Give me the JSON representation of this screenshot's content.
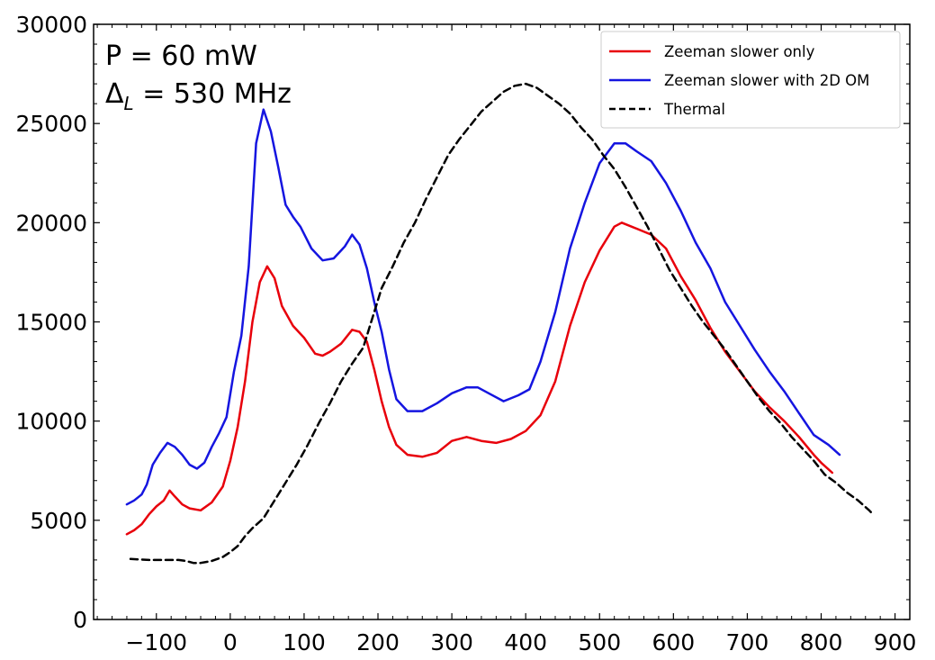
{
  "chart_data": {
    "type": "line",
    "title": "",
    "xlabel": "",
    "ylabel": "",
    "xlim": [
      -185,
      920
    ],
    "ylim": [
      0,
      30000
    ],
    "xticks": [
      -100,
      0,
      100,
      200,
      300,
      400,
      500,
      600,
      700,
      800,
      900
    ],
    "xtick_labels": [
      "−100",
      "0",
      "100",
      "200",
      "300",
      "400",
      "500",
      "600",
      "700",
      "800",
      "900"
    ],
    "yticks": [
      0,
      5000,
      10000,
      15000,
      20000,
      25000,
      30000
    ],
    "ytick_labels": [
      "0",
      "5000",
      "10000",
      "15000",
      "20000",
      "25000",
      "30000"
    ],
    "grid": false,
    "legend_position": "top-right",
    "annotations": [
      {
        "text": "P = 60 mW"
      },
      {
        "text_main": "Δ",
        "text_sub": "L",
        "text_rest": " = 530 MHz"
      }
    ],
    "series": [
      {
        "name": "Zeeman slower only",
        "color": "#e8000b",
        "style": "solid",
        "points": [
          [
            -140,
            4300
          ],
          [
            -130,
            4500
          ],
          [
            -120,
            4800
          ],
          [
            -110,
            5300
          ],
          [
            -100,
            5700
          ],
          [
            -90,
            6000
          ],
          [
            -82,
            6500
          ],
          [
            -75,
            6200
          ],
          [
            -65,
            5800
          ],
          [
            -55,
            5600
          ],
          [
            -40,
            5500
          ],
          [
            -25,
            5900
          ],
          [
            -10,
            6700
          ],
          [
            0,
            8000
          ],
          [
            10,
            9700
          ],
          [
            20,
            12000
          ],
          [
            30,
            15000
          ],
          [
            40,
            17000
          ],
          [
            50,
            17800
          ],
          [
            60,
            17200
          ],
          [
            70,
            15800
          ],
          [
            85,
            14800
          ],
          [
            100,
            14200
          ],
          [
            115,
            13400
          ],
          [
            125,
            13300
          ],
          [
            135,
            13500
          ],
          [
            150,
            13900
          ],
          [
            165,
            14600
          ],
          [
            175,
            14500
          ],
          [
            185,
            14000
          ],
          [
            195,
            12600
          ],
          [
            205,
            11000
          ],
          [
            215,
            9700
          ],
          [
            225,
            8800
          ],
          [
            240,
            8300
          ],
          [
            260,
            8200
          ],
          [
            280,
            8400
          ],
          [
            300,
            9000
          ],
          [
            320,
            9200
          ],
          [
            340,
            9000
          ],
          [
            360,
            8900
          ],
          [
            380,
            9100
          ],
          [
            400,
            9500
          ],
          [
            420,
            10300
          ],
          [
            440,
            12000
          ],
          [
            460,
            14800
          ],
          [
            480,
            17000
          ],
          [
            500,
            18600
          ],
          [
            520,
            19800
          ],
          [
            530,
            20000
          ],
          [
            550,
            19700
          ],
          [
            570,
            19400
          ],
          [
            590,
            18700
          ],
          [
            610,
            17300
          ],
          [
            630,
            16100
          ],
          [
            650,
            14700
          ],
          [
            670,
            13500
          ],
          [
            690,
            12500
          ],
          [
            710,
            11500
          ],
          [
            730,
            10700
          ],
          [
            750,
            10000
          ],
          [
            770,
            9200
          ],
          [
            790,
            8300
          ],
          [
            800,
            7900
          ],
          [
            815,
            7400
          ]
        ]
      },
      {
        "name": "Zeeman slower with 2D OM",
        "color": "#1515e0",
        "style": "solid",
        "points": [
          [
            -140,
            5800
          ],
          [
            -130,
            6000
          ],
          [
            -120,
            6300
          ],
          [
            -113,
            6800
          ],
          [
            -105,
            7800
          ],
          [
            -95,
            8400
          ],
          [
            -85,
            8900
          ],
          [
            -75,
            8700
          ],
          [
            -65,
            8300
          ],
          [
            -55,
            7800
          ],
          [
            -45,
            7600
          ],
          [
            -35,
            7900
          ],
          [
            -25,
            8700
          ],
          [
            -15,
            9400
          ],
          [
            -5,
            10200
          ],
          [
            5,
            12500
          ],
          [
            15,
            14300
          ],
          [
            25,
            17800
          ],
          [
            35,
            24000
          ],
          [
            45,
            25700
          ],
          [
            55,
            24600
          ],
          [
            65,
            22800
          ],
          [
            75,
            20900
          ],
          [
            85,
            20300
          ],
          [
            95,
            19800
          ],
          [
            110,
            18700
          ],
          [
            125,
            18100
          ],
          [
            140,
            18200
          ],
          [
            155,
            18800
          ],
          [
            165,
            19400
          ],
          [
            175,
            18900
          ],
          [
            185,
            17700
          ],
          [
            195,
            16000
          ],
          [
            205,
            14500
          ],
          [
            215,
            12600
          ],
          [
            225,
            11100
          ],
          [
            240,
            10500
          ],
          [
            260,
            10500
          ],
          [
            280,
            10900
          ],
          [
            300,
            11400
          ],
          [
            320,
            11700
          ],
          [
            335,
            11700
          ],
          [
            350,
            11400
          ],
          [
            370,
            11000
          ],
          [
            390,
            11300
          ],
          [
            405,
            11600
          ],
          [
            420,
            13000
          ],
          [
            440,
            15500
          ],
          [
            460,
            18700
          ],
          [
            480,
            21000
          ],
          [
            500,
            23000
          ],
          [
            520,
            24000
          ],
          [
            535,
            24000
          ],
          [
            550,
            23600
          ],
          [
            570,
            23100
          ],
          [
            590,
            22000
          ],
          [
            610,
            20600
          ],
          [
            630,
            19000
          ],
          [
            650,
            17700
          ],
          [
            670,
            16000
          ],
          [
            690,
            14800
          ],
          [
            710,
            13600
          ],
          [
            730,
            12500
          ],
          [
            750,
            11500
          ],
          [
            770,
            10400
          ],
          [
            790,
            9300
          ],
          [
            810,
            8800
          ],
          [
            825,
            8300
          ]
        ]
      },
      {
        "name": "Thermal",
        "color": "#000000",
        "style": "dashed",
        "points": [
          [
            -135,
            3050
          ],
          [
            -110,
            3000
          ],
          [
            -85,
            3000
          ],
          [
            -70,
            3000
          ],
          [
            -60,
            2950
          ],
          [
            -50,
            2850
          ],
          [
            -40,
            2850
          ],
          [
            -25,
            2950
          ],
          [
            -10,
            3150
          ],
          [
            0,
            3400
          ],
          [
            10,
            3700
          ],
          [
            20,
            4200
          ],
          [
            30,
            4600
          ],
          [
            45,
            5100
          ],
          [
            60,
            6000
          ],
          [
            75,
            6900
          ],
          [
            90,
            7800
          ],
          [
            105,
            8800
          ],
          [
            120,
            9900
          ],
          [
            135,
            10900
          ],
          [
            150,
            12000
          ],
          [
            165,
            12900
          ],
          [
            180,
            13700
          ],
          [
            195,
            15500
          ],
          [
            205,
            16700
          ],
          [
            220,
            17800
          ],
          [
            235,
            19000
          ],
          [
            250,
            20000
          ],
          [
            265,
            21200
          ],
          [
            280,
            22300
          ],
          [
            295,
            23400
          ],
          [
            310,
            24200
          ],
          [
            325,
            24900
          ],
          [
            340,
            25600
          ],
          [
            355,
            26100
          ],
          [
            370,
            26600
          ],
          [
            385,
            26900
          ],
          [
            400,
            27000
          ],
          [
            415,
            26800
          ],
          [
            430,
            26400
          ],
          [
            445,
            26000
          ],
          [
            460,
            25500
          ],
          [
            475,
            24800
          ],
          [
            490,
            24200
          ],
          [
            505,
            23400
          ],
          [
            520,
            22700
          ],
          [
            535,
            21800
          ],
          [
            550,
            20800
          ],
          [
            565,
            19800
          ],
          [
            580,
            18700
          ],
          [
            595,
            17600
          ],
          [
            610,
            16700
          ],
          [
            625,
            15800
          ],
          [
            640,
            15000
          ],
          [
            655,
            14300
          ],
          [
            670,
            13600
          ],
          [
            685,
            12800
          ],
          [
            700,
            12000
          ],
          [
            715,
            11200
          ],
          [
            730,
            10500
          ],
          [
            745,
            9900
          ],
          [
            760,
            9200
          ],
          [
            775,
            8600
          ],
          [
            790,
            8000
          ],
          [
            805,
            7300
          ],
          [
            820,
            6900
          ],
          [
            835,
            6400
          ],
          [
            850,
            6000
          ],
          [
            865,
            5500
          ],
          [
            870,
            5300
          ]
        ]
      }
    ]
  }
}
